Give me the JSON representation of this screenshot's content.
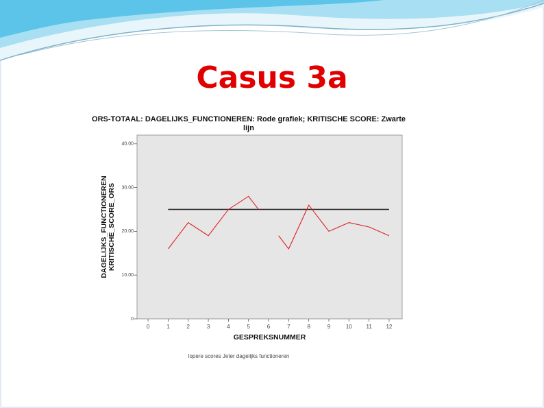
{
  "slide": {
    "title": "Casus 3a"
  },
  "chart_data": {
    "type": "line",
    "title": "ORS-TOTAAL: DAGELIJKS_FUNCTIONEREN: Rode grafiek; KRITISCHE SCORE: Zwarte lijn",
    "ylabel": [
      "DAGELIJKS_FUNCTIONEREN",
      "KRITISCHE_SCORE_ORS"
    ],
    "xlabel": "GESPREKSNUMMER",
    "footnote": "lopere scores   Jeter dagelijks functioneren",
    "xlim": [
      -0.55,
      12.65
    ],
    "xticks": [
      0,
      1,
      2,
      3,
      4,
      5,
      6,
      7,
      8,
      9,
      10,
      11,
      12
    ],
    "ylim": [
      0,
      42
    ],
    "yticks": [
      0,
      {
        "value": 10,
        "label": "10.00"
      },
      {
        "value": 20,
        "label": "20.00"
      },
      {
        "value": 30,
        "label": "30.00"
      },
      {
        "value": 40,
        "label": "40.00"
      }
    ],
    "series": [
      {
        "name": "Dagelijks functioneren",
        "color": "#e02020",
        "x": [
          1,
          2,
          3,
          4,
          5,
          5.5,
          6,
          6.5,
          7,
          8,
          9,
          10,
          11,
          12
        ],
        "values": [
          16,
          22,
          19,
          25,
          28,
          25,
          null,
          19,
          16,
          26,
          20,
          22,
          21,
          19
        ]
      },
      {
        "name": "Kritische score",
        "color": "#333333",
        "x": [
          1,
          12
        ],
        "values": [
          25,
          25
        ]
      }
    ]
  }
}
